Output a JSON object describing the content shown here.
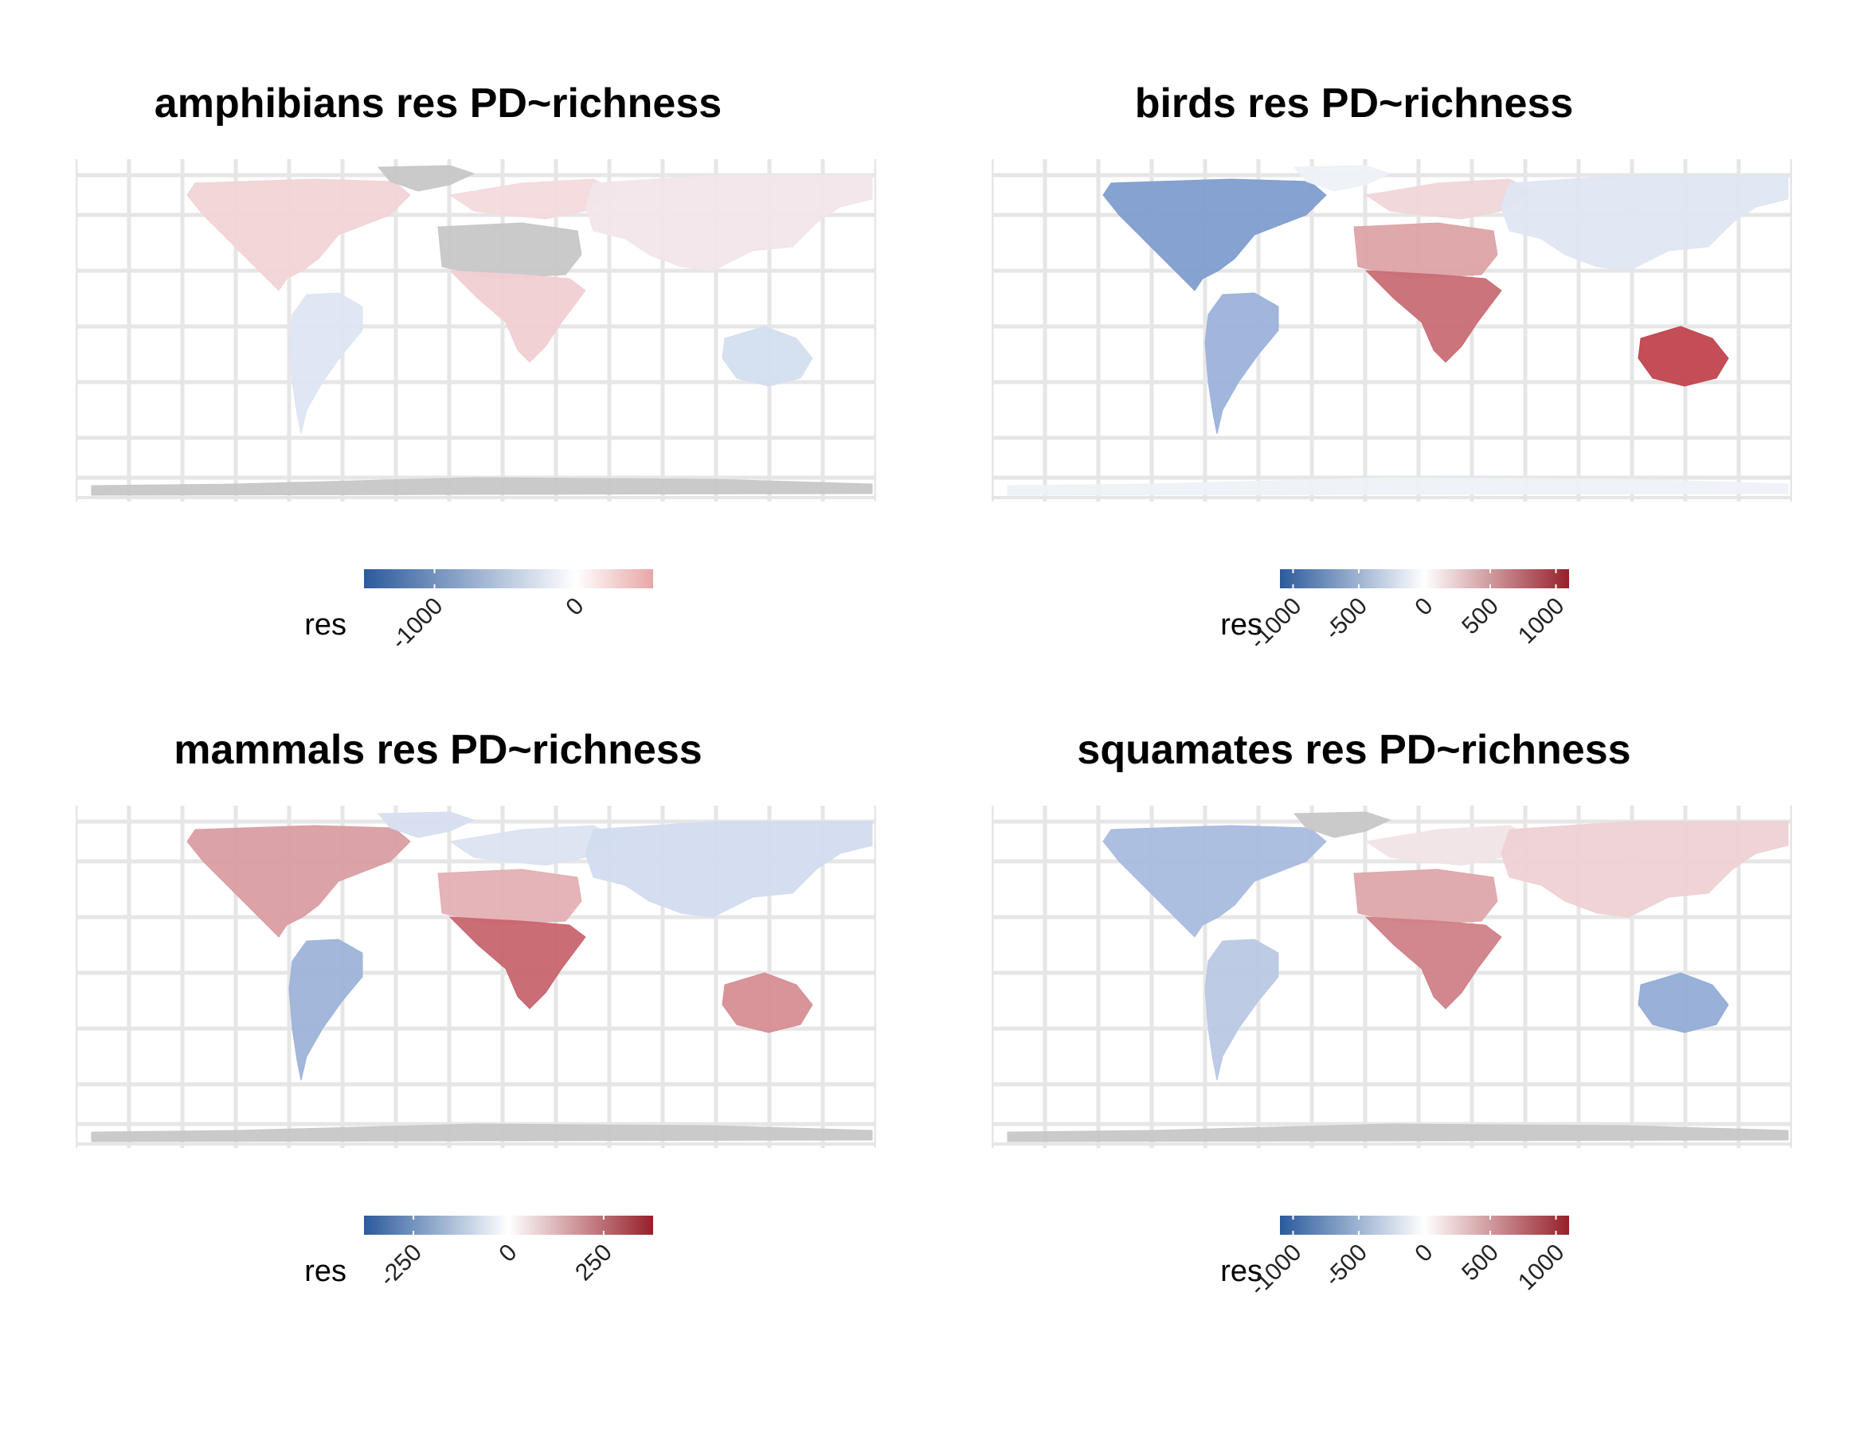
{
  "panels": [
    {
      "id": "amphibians",
      "title": "amphibians res PD~richness",
      "legend": {
        "title": "res",
        "ticks": [
          "-1000",
          "0"
        ],
        "tick_values": [
          -1000,
          0
        ],
        "range": [
          -1500,
          550
        ],
        "colors_low_mid_high": [
          "#2b5a9c",
          "#ffffff",
          "#e8a6a6"
        ]
      },
      "regions": {
        "north_america": "#f1d4d6",
        "greenland": "#c7c7c7",
        "south_america": "#dde5f3",
        "europe": "#f3dadd",
        "africa_north": "#c7c7c7",
        "africa_south": "#f1cfd3",
        "asia": "#f2e6ea",
        "australia": "#d3dff0",
        "antarctica": "#c7c7c7"
      }
    },
    {
      "id": "birds",
      "title": "birds res PD~richness",
      "legend": {
        "title": "res",
        "ticks": [
          "-1000",
          "-500",
          "0",
          "500",
          "1000"
        ],
        "tick_values": [
          -1000,
          -500,
          0,
          500,
          1000
        ],
        "range": [
          -1100,
          1100
        ],
        "colors_low_mid_high": [
          "#2b5a9c",
          "#ffffff",
          "#96202a"
        ]
      },
      "regions": {
        "north_america": "#7f9dcf",
        "greenland": "#eef1f7",
        "south_america": "#9cb2da",
        "europe": "#f0d6d9",
        "africa_north": "#dda3a7",
        "africa_south": "#c96d74",
        "asia": "#dfe6f2",
        "australia": "#c1454f",
        "antarctica": "#eef1f7"
      }
    },
    {
      "id": "mammals",
      "title": "mammals res PD~richness",
      "legend": {
        "title": "res",
        "ticks": [
          "-250",
          "0",
          "250"
        ],
        "tick_values": [
          -250,
          0,
          250
        ],
        "range": [
          -380,
          380
        ],
        "colors_low_mid_high": [
          "#2b5a9c",
          "#ffffff",
          "#96202a"
        ]
      },
      "regions": {
        "north_america": "#d99ea3",
        "greenland": "#d6def0",
        "south_america": "#9eb3d9",
        "europe": "#dbe3f1",
        "africa_north": "#e3b0b4",
        "africa_south": "#c8656e",
        "asia": "#d2dcef",
        "australia": "#d68e94",
        "antarctica": "#c7c7c7"
      }
    },
    {
      "id": "squamates",
      "title": "squamates res PD~richness",
      "legend": {
        "title": "res",
        "ticks": [
          "-1000",
          "-500",
          "0",
          "500",
          "1000"
        ],
        "tick_values": [
          -1000,
          -500,
          0,
          500,
          1000
        ],
        "range": [
          -1100,
          1100
        ],
        "colors_low_mid_high": [
          "#2b5a9c",
          "#ffffff",
          "#96202a"
        ]
      },
      "regions": {
        "north_america": "#a9bcdf",
        "greenland": "#c7c7c7",
        "south_america": "#b9c8e4",
        "europe": "#f1e4e7",
        "africa_north": "#dea7ab",
        "africa_south": "#d08088",
        "asia": "#eed1d4",
        "australia": "#93acd6",
        "antarctica": "#c7c7c7"
      }
    }
  ]
}
